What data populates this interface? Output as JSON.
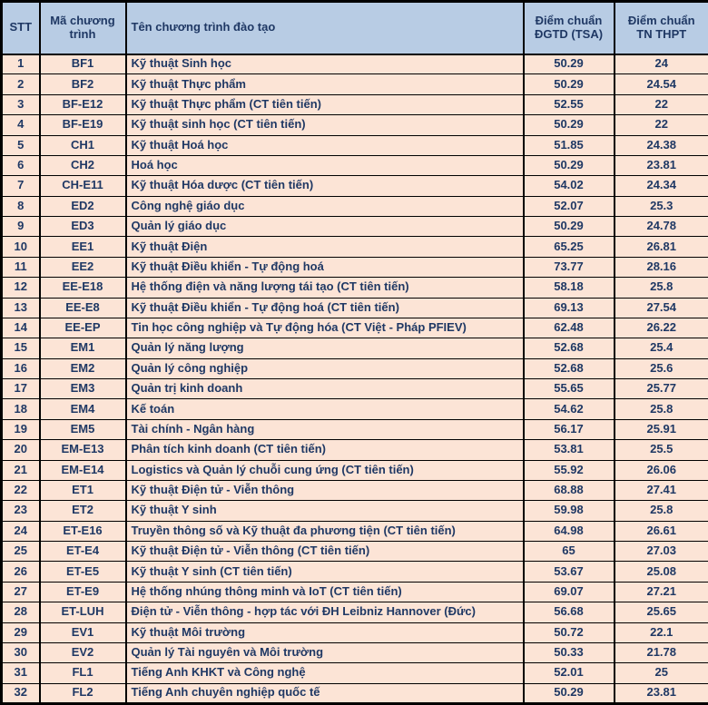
{
  "colors": {
    "header_bg": "#b8cce4",
    "row_bg": "#fce4d6",
    "text": "#1f3864",
    "border": "#000000"
  },
  "table": {
    "columns": [
      "STT",
      "Mã chương trình",
      "Tên chương trình đào tạo",
      "Điểm chuẩn ĐGTD (TSA)",
      "Điểm chuẩn TN THPT"
    ],
    "rows": [
      {
        "stt": "1",
        "code": "BF1",
        "name": "Kỹ thuật Sinh học",
        "tsa": "50.29",
        "thpt": "24"
      },
      {
        "stt": "2",
        "code": "BF2",
        "name": "Kỹ thuật Thực phẩm",
        "tsa": "50.29",
        "thpt": "24.54"
      },
      {
        "stt": "3",
        "code": "BF-E12",
        "name": "Kỹ thuật Thực phẩm (CT tiên tiến)",
        "tsa": "52.55",
        "thpt": "22"
      },
      {
        "stt": "4",
        "code": "BF-E19",
        "name": "Kỹ thuật sinh học (CT tiên tiến)",
        "tsa": "50.29",
        "thpt": "22"
      },
      {
        "stt": "5",
        "code": "CH1",
        "name": "Kỹ thuật Hoá học",
        "tsa": "51.85",
        "thpt": "24.38"
      },
      {
        "stt": "6",
        "code": "CH2",
        "name": "Hoá học",
        "tsa": "50.29",
        "thpt": "23.81"
      },
      {
        "stt": "7",
        "code": "CH-E11",
        "name": "Kỹ thuật Hóa dược (CT tiên tiến)",
        "tsa": "54.02",
        "thpt": "24.34"
      },
      {
        "stt": "8",
        "code": "ED2",
        "name": "Công nghệ giáo dục",
        "tsa": "52.07",
        "thpt": "25.3"
      },
      {
        "stt": "9",
        "code": "ED3",
        "name": "Quản lý giáo dục",
        "tsa": "50.29",
        "thpt": "24.78"
      },
      {
        "stt": "10",
        "code": "EE1",
        "name": "Kỹ thuật Điện",
        "tsa": "65.25",
        "thpt": "26.81"
      },
      {
        "stt": "11",
        "code": "EE2",
        "name": "Kỹ thuật Điều khiển - Tự động hoá",
        "tsa": "73.77",
        "thpt": "28.16"
      },
      {
        "stt": "12",
        "code": "EE-E18",
        "name": "Hệ thống điện và năng lượng tái tạo (CT tiên tiến)",
        "tsa": "58.18",
        "thpt": "25.8"
      },
      {
        "stt": "13",
        "code": "EE-E8",
        "name": "Kỹ thuật Điều khiển - Tự động hoá (CT tiên tiến)",
        "tsa": "69.13",
        "thpt": "27.54"
      },
      {
        "stt": "14",
        "code": "EE-EP",
        "name": "Tin học công nghiệp và Tự động hóa (CT Việt - Pháp PFIEV)",
        "tsa": "62.48",
        "thpt": "26.22"
      },
      {
        "stt": "15",
        "code": "EM1",
        "name": "Quản lý năng lượng",
        "tsa": "52.68",
        "thpt": "25.4"
      },
      {
        "stt": "16",
        "code": "EM2",
        "name": "Quản lý công nghiệp",
        "tsa": "52.68",
        "thpt": "25.6"
      },
      {
        "stt": "17",
        "code": "EM3",
        "name": "Quản trị kinh doanh",
        "tsa": "55.65",
        "thpt": "25.77"
      },
      {
        "stt": "18",
        "code": "EM4",
        "name": "Kế toán",
        "tsa": "54.62",
        "thpt": "25.8"
      },
      {
        "stt": "19",
        "code": "EM5",
        "name": "Tài chính - Ngân hàng",
        "tsa": "56.17",
        "thpt": "25.91"
      },
      {
        "stt": "20",
        "code": "EM-E13",
        "name": "Phân tích kinh doanh (CT tiên tiến)",
        "tsa": "53.81",
        "thpt": "25.5"
      },
      {
        "stt": "21",
        "code": "EM-E14",
        "name": "Logistics và Quản lý chuỗi cung ứng (CT tiên tiến)",
        "tsa": "55.92",
        "thpt": "26.06"
      },
      {
        "stt": "22",
        "code": "ET1",
        "name": "Kỹ thuật Điện tử - Viễn thông",
        "tsa": "68.88",
        "thpt": "27.41"
      },
      {
        "stt": "23",
        "code": "ET2",
        "name": "Kỹ thuật Y sinh",
        "tsa": "59.98",
        "thpt": "25.8"
      },
      {
        "stt": "24",
        "code": "ET-E16",
        "name": "Truyền thông số và Kỹ thuật đa phương tiện (CT tiên tiến)",
        "tsa": "64.98",
        "thpt": "26.61"
      },
      {
        "stt": "25",
        "code": "ET-E4",
        "name": "Kỹ thuật Điện tử - Viễn thông (CT tiên tiến)",
        "tsa": "65",
        "thpt": "27.03"
      },
      {
        "stt": "26",
        "code": "ET-E5",
        "name": "Kỹ thuật Y sinh (CT tiên tiến)",
        "tsa": "53.67",
        "thpt": "25.08"
      },
      {
        "stt": "27",
        "code": "ET-E9",
        "name": "Hệ thống nhúng thông minh và IoT (CT tiên tiến)",
        "tsa": "69.07",
        "thpt": "27.21"
      },
      {
        "stt": "28",
        "code": "ET-LUH",
        "name": "Điện tử - Viễn thông - hợp tác với ĐH Leibniz Hannover (Đức)",
        "tsa": "56.68",
        "thpt": "25.65"
      },
      {
        "stt": "29",
        "code": "EV1",
        "name": "Kỹ thuật Môi trường",
        "tsa": "50.72",
        "thpt": "22.1"
      },
      {
        "stt": "30",
        "code": "EV2",
        "name": "Quản lý Tài nguyên và Môi trường",
        "tsa": "50.33",
        "thpt": "21.78"
      },
      {
        "stt": "31",
        "code": "FL1",
        "name": "Tiếng Anh KHKT và Công nghệ",
        "tsa": "52.01",
        "thpt": "25"
      },
      {
        "stt": "32",
        "code": "FL2",
        "name": "Tiếng Anh chuyên nghiệp quốc tế",
        "tsa": "50.29",
        "thpt": "23.81"
      }
    ]
  }
}
